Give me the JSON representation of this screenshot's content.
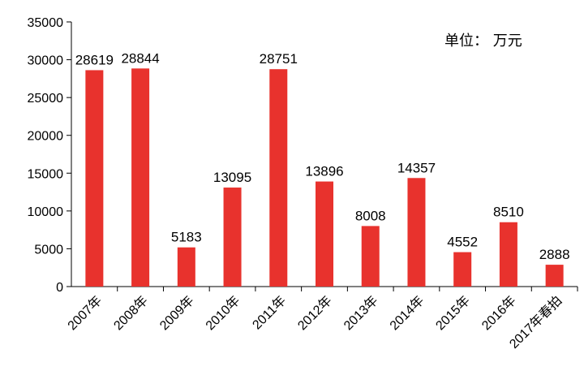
{
  "chart_data": {
    "type": "bar",
    "categories": [
      "2007年",
      "2008年",
      "2009年",
      "2010年",
      "2011年",
      "2012年",
      "2013年",
      "2014年",
      "2015年",
      "2016年",
      "2017年春拍"
    ],
    "values": [
      28619,
      28844,
      5183,
      13095,
      28751,
      13896,
      8008,
      14357,
      4552,
      8510,
      2888
    ],
    "unit_label": "单位：  万元",
    "ylim": [
      0,
      35000
    ],
    "yticks": [
      0,
      5000,
      10000,
      15000,
      20000,
      25000,
      30000,
      35000
    ],
    "grid": false,
    "bar_color": "#e8322d",
    "data_labels": true
  }
}
